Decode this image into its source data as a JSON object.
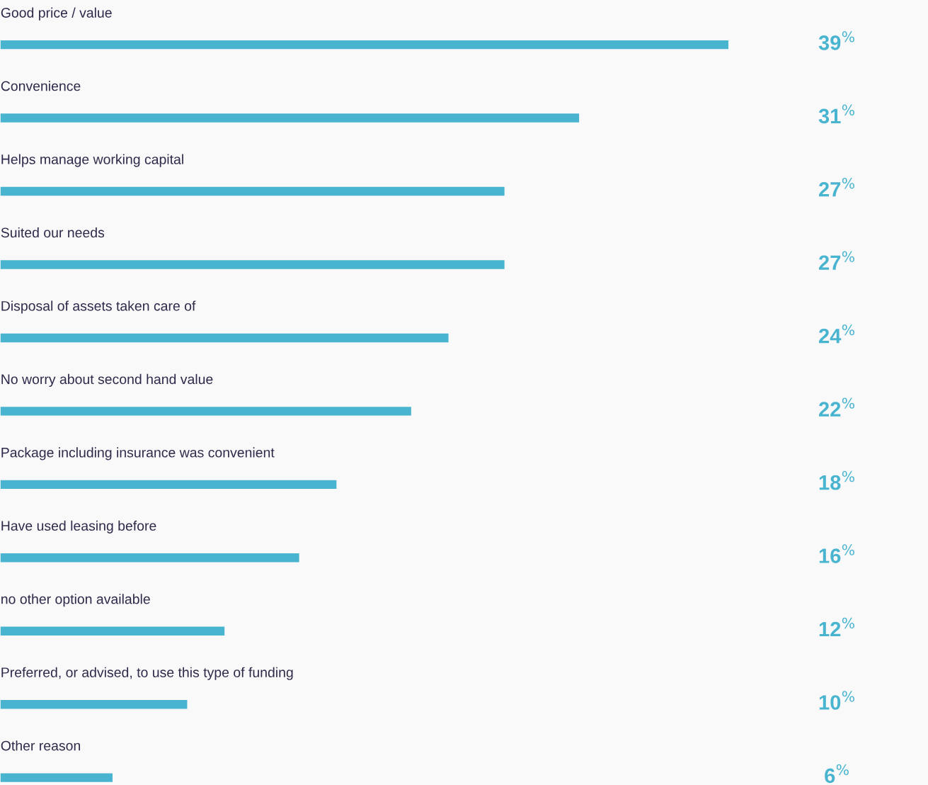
{
  "chart_data": {
    "type": "bar",
    "orientation": "horizontal",
    "categories": [
      "Good price / value",
      "Convenience",
      "Helps manage working capital",
      "Suited our needs",
      "Disposal of assets taken care of",
      "No worry about second hand value",
      "Package including insurance was convenient",
      "Have used leasing before",
      "no other option available",
      "Preferred, or advised, to use this type of funding",
      "Other reason"
    ],
    "values": [
      39,
      31,
      27,
      27,
      24,
      22,
      18,
      16,
      12,
      10,
      6
    ],
    "value_labels": [
      "39$^{%}$",
      "31$^{%}$",
      "27$^{%}$",
      "27$^{%}$",
      "24$^{%}$",
      "22$^{%}$",
      "18$^{%}$",
      "16$^{%}$",
      "12$^{%}$",
      "10$^{%}$",
      "6$^{%}$"
    ],
    "color": "#48b4d0"
  }
}
